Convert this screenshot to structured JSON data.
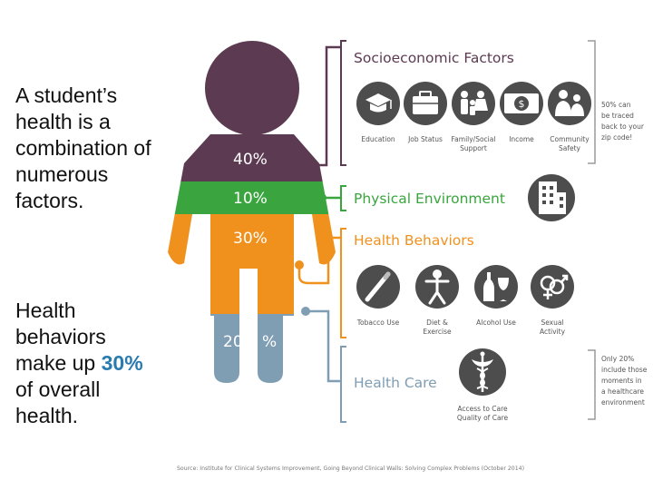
{
  "slide": {
    "text1": "A student’s health is a combination of numerous factors.",
    "text2_pre": "Health behaviors make up ",
    "text2_highlight": "30%",
    "text2_post": " of overall health."
  },
  "figure": {
    "percents": {
      "socioeconomic": "40%",
      "physical": "10%",
      "behaviors": "30%",
      "care_num": "20",
      "care_sign": "%"
    },
    "categories": {
      "socioeconomic": "Socioeconomic Factors",
      "physical": "Physical Environment",
      "behaviors": "Health Behaviors",
      "care": "Health Care"
    },
    "socio_items": [
      {
        "label": "Education",
        "icon": "graduation-cap-icon"
      },
      {
        "label": "Job Status",
        "icon": "briefcase-icon"
      },
      {
        "label": "Family/Social",
        "label2": "Support",
        "icon": "family-icon"
      },
      {
        "label": "Income",
        "icon": "money-icon"
      },
      {
        "label": "Community",
        "label2": "Safety",
        "icon": "community-icon"
      }
    ],
    "behavior_items": [
      {
        "label": "Tobacco Use",
        "icon": "cigarette-icon"
      },
      {
        "label": "Diet &",
        "label2": "Exercise",
        "icon": "diet-exercise-icon"
      },
      {
        "label": "Alcohol Use",
        "icon": "alcohol-icon"
      },
      {
        "label": "Sexual",
        "label2": "Activity",
        "icon": "sexual-activity-icon"
      }
    ],
    "care_item": {
      "label": "Access to Care",
      "label2": "Quality of Care",
      "icon": "caduceus-icon"
    },
    "physical_icon": "building-icon",
    "note_socio": [
      "50% can",
      "be traced",
      "back to your",
      "zip code!"
    ],
    "note_care": [
      "Only 20%",
      "include those",
      "moments in",
      "a healthcare",
      "environment"
    ],
    "source": "Source: Institute for Clinical Systems Improvement, Going Beyond Clinical Walls: Solving Complex Problems (October 2014)"
  },
  "colors": {
    "socioeconomic": "#5c3a52",
    "physical": "#3aa53e",
    "behaviors": "#f0911e",
    "care": "#7f9db3",
    "highlight": "#2a7bb0"
  }
}
